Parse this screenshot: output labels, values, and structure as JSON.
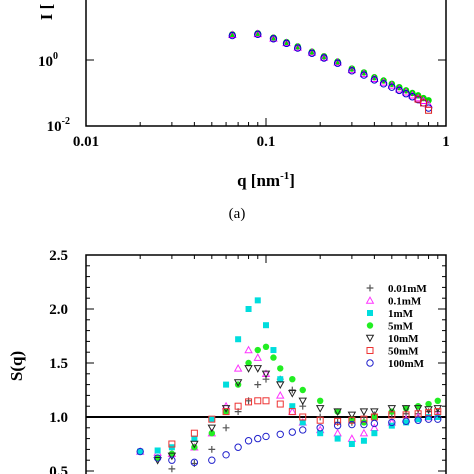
{
  "chart_data": [
    {
      "type": "scatter",
      "panel_label": "(a)",
      "xlabel": "q [nm",
      "xlabel_sup": "-1",
      "xlabel_tail": "]",
      "ylabel": "I [",
      "xscale": "log",
      "yscale": "log",
      "xlim": [
        0.01,
        1
      ],
      "ylim_visible": [
        0.01,
        10
      ],
      "x_ticks": [
        {
          "value": 0.01,
          "label": "0.01"
        },
        {
          "value": 0.1,
          "label": "0.1"
        },
        {
          "value": 1,
          "label": "1"
        }
      ],
      "y_ticks": [
        {
          "value": 0.01,
          "base": "10",
          "exp": "-2"
        },
        {
          "value": 1,
          "base": "10",
          "exp": "0"
        }
      ],
      "series": [
        {
          "color": "#00e000",
          "marker": "filled-circle",
          "x": [
            0.065,
            0.09,
            0.11,
            0.13,
            0.15,
            0.18,
            0.21,
            0.25,
            0.3,
            0.35,
            0.4,
            0.45,
            0.5,
            0.55,
            0.6,
            0.65,
            0.7,
            0.75,
            0.8
          ],
          "y": [
            6,
            6.5,
            4.8,
            3.5,
            2.6,
            1.8,
            1.3,
            0.9,
            0.55,
            0.42,
            0.3,
            0.24,
            0.19,
            0.15,
            0.12,
            0.1,
            0.085,
            0.07,
            0.06
          ]
        },
        {
          "color": "#ff00ff",
          "marker": "open-triangle-up",
          "x": [
            0.065,
            0.09,
            0.11,
            0.13,
            0.15,
            0.18,
            0.21,
            0.25,
            0.3,
            0.35,
            0.4,
            0.45,
            0.5,
            0.55,
            0.6,
            0.65,
            0.7,
            0.75,
            0.8
          ],
          "y": [
            5.8,
            6.2,
            4.5,
            3.3,
            2.4,
            1.7,
            1.2,
            0.85,
            0.5,
            0.38,
            0.27,
            0.21,
            0.17,
            0.13,
            0.105,
            0.085,
            0.07,
            0.058,
            0.045
          ]
        },
        {
          "color": "#0000cc",
          "marker": "open-circle",
          "x": [
            0.065,
            0.09,
            0.11,
            0.13,
            0.15,
            0.18,
            0.21,
            0.25,
            0.3,
            0.35,
            0.4,
            0.45,
            0.5,
            0.55,
            0.6,
            0.65,
            0.7,
            0.75,
            0.8
          ],
          "y": [
            5.5,
            6.0,
            4.4,
            3.2,
            2.3,
            1.6,
            1.15,
            0.8,
            0.47,
            0.35,
            0.25,
            0.19,
            0.15,
            0.12,
            0.095,
            0.077,
            0.063,
            0.05,
            0.035
          ]
        },
        {
          "color": "#dd2222",
          "marker": "open-square",
          "x": [
            0.7,
            0.75,
            0.8
          ],
          "y": [
            0.065,
            0.05,
            0.03
          ]
        }
      ]
    },
    {
      "type": "scatter",
      "ylabel": "S(q)",
      "xscale": "log",
      "xlim": [
        0.01,
        1
      ],
      "ylim": [
        0.5,
        2.5
      ],
      "y_ticks": [
        {
          "value": 0.5,
          "label": "0.5"
        },
        {
          "value": 1.0,
          "label": "1.0"
        },
        {
          "value": 1.5,
          "label": "1.5"
        },
        {
          "value": 2.0,
          "label": "2.0"
        },
        {
          "value": 2.5,
          "label": "2.5"
        }
      ],
      "reference_line": 1.0,
      "legend_position": "right",
      "series": [
        {
          "name": "0.01mM",
          "color": "#555555",
          "marker": "plus",
          "x": [
            0.03,
            0.04,
            0.05,
            0.06,
            0.07,
            0.08,
            0.09,
            0.1,
            0.12,
            0.14,
            0.16,
            0.2,
            0.25,
            0.3,
            0.35,
            0.4,
            0.5,
            0.6,
            0.7,
            0.8,
            0.9
          ],
          "y": [
            0.52,
            0.57,
            0.7,
            0.9,
            1.05,
            1.15,
            1.3,
            1.35,
            1.35,
            1.25,
            1.1,
            1.0,
            0.95,
            0.95,
            1.0,
            1.02,
            1.03,
            1.03,
            1.03,
            1.05,
            1.05
          ]
        },
        {
          "name": "0.1mM",
          "color": "#ff33ff",
          "marker": "open-triangle-up",
          "x": [
            0.02,
            0.025,
            0.03,
            0.04,
            0.05,
            0.06,
            0.07,
            0.08,
            0.09,
            0.1,
            0.12,
            0.14,
            0.16,
            0.2,
            0.25,
            0.3,
            0.35,
            0.4,
            0.5,
            0.6,
            0.7,
            0.8,
            0.9
          ],
          "y": [
            0.68,
            0.67,
            0.66,
            0.72,
            0.85,
            1.1,
            1.45,
            1.62,
            1.55,
            1.4,
            1.2,
            1.05,
            0.95,
            0.88,
            0.85,
            0.8,
            0.85,
            0.9,
            0.95,
            0.98,
            1.0,
            1.0,
            1.02
          ]
        },
        {
          "name": "1mM",
          "color": "#00dddd",
          "marker": "filled-square",
          "x": [
            0.02,
            0.025,
            0.03,
            0.04,
            0.05,
            0.06,
            0.07,
            0.08,
            0.09,
            0.1,
            0.11,
            0.12,
            0.14,
            0.16,
            0.2,
            0.25,
            0.3,
            0.35,
            0.4,
            0.5,
            0.6,
            0.7,
            0.8,
            0.9
          ],
          "y": [
            0.68,
            0.69,
            0.72,
            0.8,
            0.98,
            1.3,
            1.72,
            2.0,
            2.08,
            1.85,
            1.62,
            1.35,
            1.1,
            0.95,
            0.85,
            0.8,
            0.75,
            0.78,
            0.85,
            0.92,
            0.95,
            0.98,
            1.0,
            1.0
          ]
        },
        {
          "name": "5mM",
          "color": "#22ee22",
          "marker": "filled-circle",
          "x": [
            0.025,
            0.03,
            0.04,
            0.05,
            0.06,
            0.07,
            0.08,
            0.09,
            0.1,
            0.11,
            0.12,
            0.14,
            0.16,
            0.2,
            0.25,
            0.3,
            0.35,
            0.4,
            0.5,
            0.6,
            0.7,
            0.8,
            0.9
          ],
          "y": [
            0.62,
            0.66,
            0.72,
            0.85,
            1.05,
            1.3,
            1.5,
            1.62,
            1.65,
            1.55,
            1.45,
            1.35,
            1.25,
            1.15,
            1.05,
            0.98,
            0.95,
            1.0,
            1.05,
            1.08,
            1.1,
            1.12,
            1.15
          ]
        },
        {
          "name": "10mM",
          "color": "#222222",
          "marker": "open-triangle-down",
          "x": [
            0.025,
            0.03,
            0.04,
            0.05,
            0.06,
            0.07,
            0.08,
            0.09,
            0.1,
            0.12,
            0.14,
            0.16,
            0.2,
            0.25,
            0.3,
            0.35,
            0.4,
            0.5,
            0.6,
            0.7,
            0.8,
            0.9
          ],
          "y": [
            0.6,
            0.64,
            0.75,
            0.9,
            1.08,
            1.32,
            1.45,
            1.45,
            1.4,
            1.3,
            1.22,
            1.15,
            1.08,
            1.05,
            1.02,
            1.05,
            1.05,
            1.08,
            1.08,
            1.08,
            1.07,
            1.08
          ]
        },
        {
          "name": "50mM",
          "color": "#ee3333",
          "marker": "open-square",
          "x": [
            0.03,
            0.04,
            0.05,
            0.06,
            0.07,
            0.08,
            0.09,
            0.1,
            0.12,
            0.14,
            0.16,
            0.2,
            0.25,
            0.3,
            0.35,
            0.4,
            0.5,
            0.6,
            0.7,
            0.8,
            0.9
          ],
          "y": [
            0.75,
            0.85,
            0.98,
            1.05,
            1.1,
            1.14,
            1.15,
            1.15,
            1.12,
            1.05,
            1.0,
            0.97,
            0.96,
            0.97,
            0.98,
            1.0,
            1.02,
            1.02,
            1.03,
            1.04,
            1.05
          ]
        },
        {
          "name": "100mM",
          "color": "#2222cc",
          "marker": "open-circle",
          "x": [
            0.02,
            0.025,
            0.03,
            0.04,
            0.05,
            0.06,
            0.07,
            0.08,
            0.09,
            0.1,
            0.12,
            0.14,
            0.16,
            0.2,
            0.25,
            0.3,
            0.35,
            0.4,
            0.5,
            0.6,
            0.7,
            0.8,
            0.9
          ],
          "y": [
            0.68,
            0.62,
            0.6,
            0.58,
            0.6,
            0.65,
            0.72,
            0.78,
            0.8,
            0.82,
            0.84,
            0.86,
            0.88,
            0.9,
            0.92,
            0.93,
            0.93,
            0.94,
            0.95,
            0.96,
            0.97,
            0.98,
            0.98
          ]
        }
      ]
    }
  ]
}
